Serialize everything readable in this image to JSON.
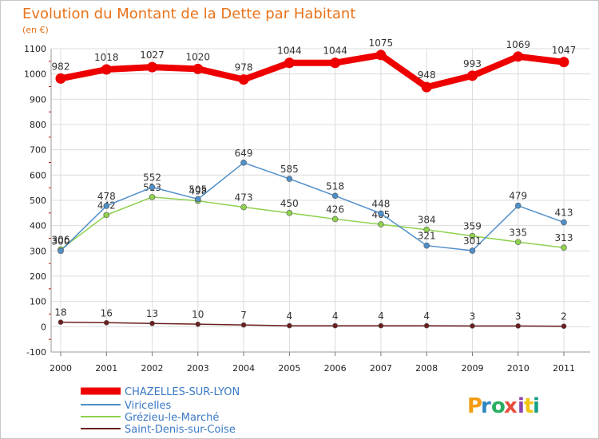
{
  "chart_data": {
    "type": "line",
    "title": "Evolution du Montant de la Dette par Habitant",
    "subtitle": "(en €)",
    "x": [
      "2000",
      "2001",
      "2002",
      "2003",
      "2004",
      "2005",
      "2006",
      "2007",
      "2008",
      "2009",
      "2010",
      "2011"
    ],
    "ylim": [
      -100,
      1100
    ],
    "yticks": [
      "-100",
      "0",
      "100",
      "200",
      "300",
      "400",
      "500",
      "600",
      "700",
      "800",
      "900",
      "1000",
      "1100"
    ],
    "grid": true,
    "legend_position": "bottom-left",
    "series": [
      {
        "name": "CHAZELLES-SUR-LYON",
        "color": "#ee0000",
        "values": [
          982,
          1018,
          1027,
          1020,
          978,
          1044,
          1044,
          1075,
          948,
          993,
          1069,
          1047
        ]
      },
      {
        "name": "Viricelles",
        "color": "#4f8fc9",
        "values": [
          300,
          478,
          552,
          505,
          649,
          585,
          518,
          448,
          321,
          301,
          479,
          413
        ]
      },
      {
        "name": "Grézieu-le-Marché",
        "color": "#8fd14f",
        "values": [
          306,
          442,
          513,
          498,
          473,
          450,
          426,
          405,
          384,
          359,
          335,
          313
        ]
      },
      {
        "name": "Saint-Denis-sur-Coise",
        "color": "#6b1e1e",
        "values": [
          18,
          16,
          13,
          10,
          7,
          4,
          4,
          4,
          4,
          3,
          3,
          2
        ]
      }
    ]
  },
  "brand": {
    "text": "Proxiti",
    "colors": [
      "#f39c12",
      "#2e86c1",
      "#27ae60",
      "#e74c3c",
      "#8e44ad",
      "#f1c40f",
      "#16a085"
    ]
  }
}
